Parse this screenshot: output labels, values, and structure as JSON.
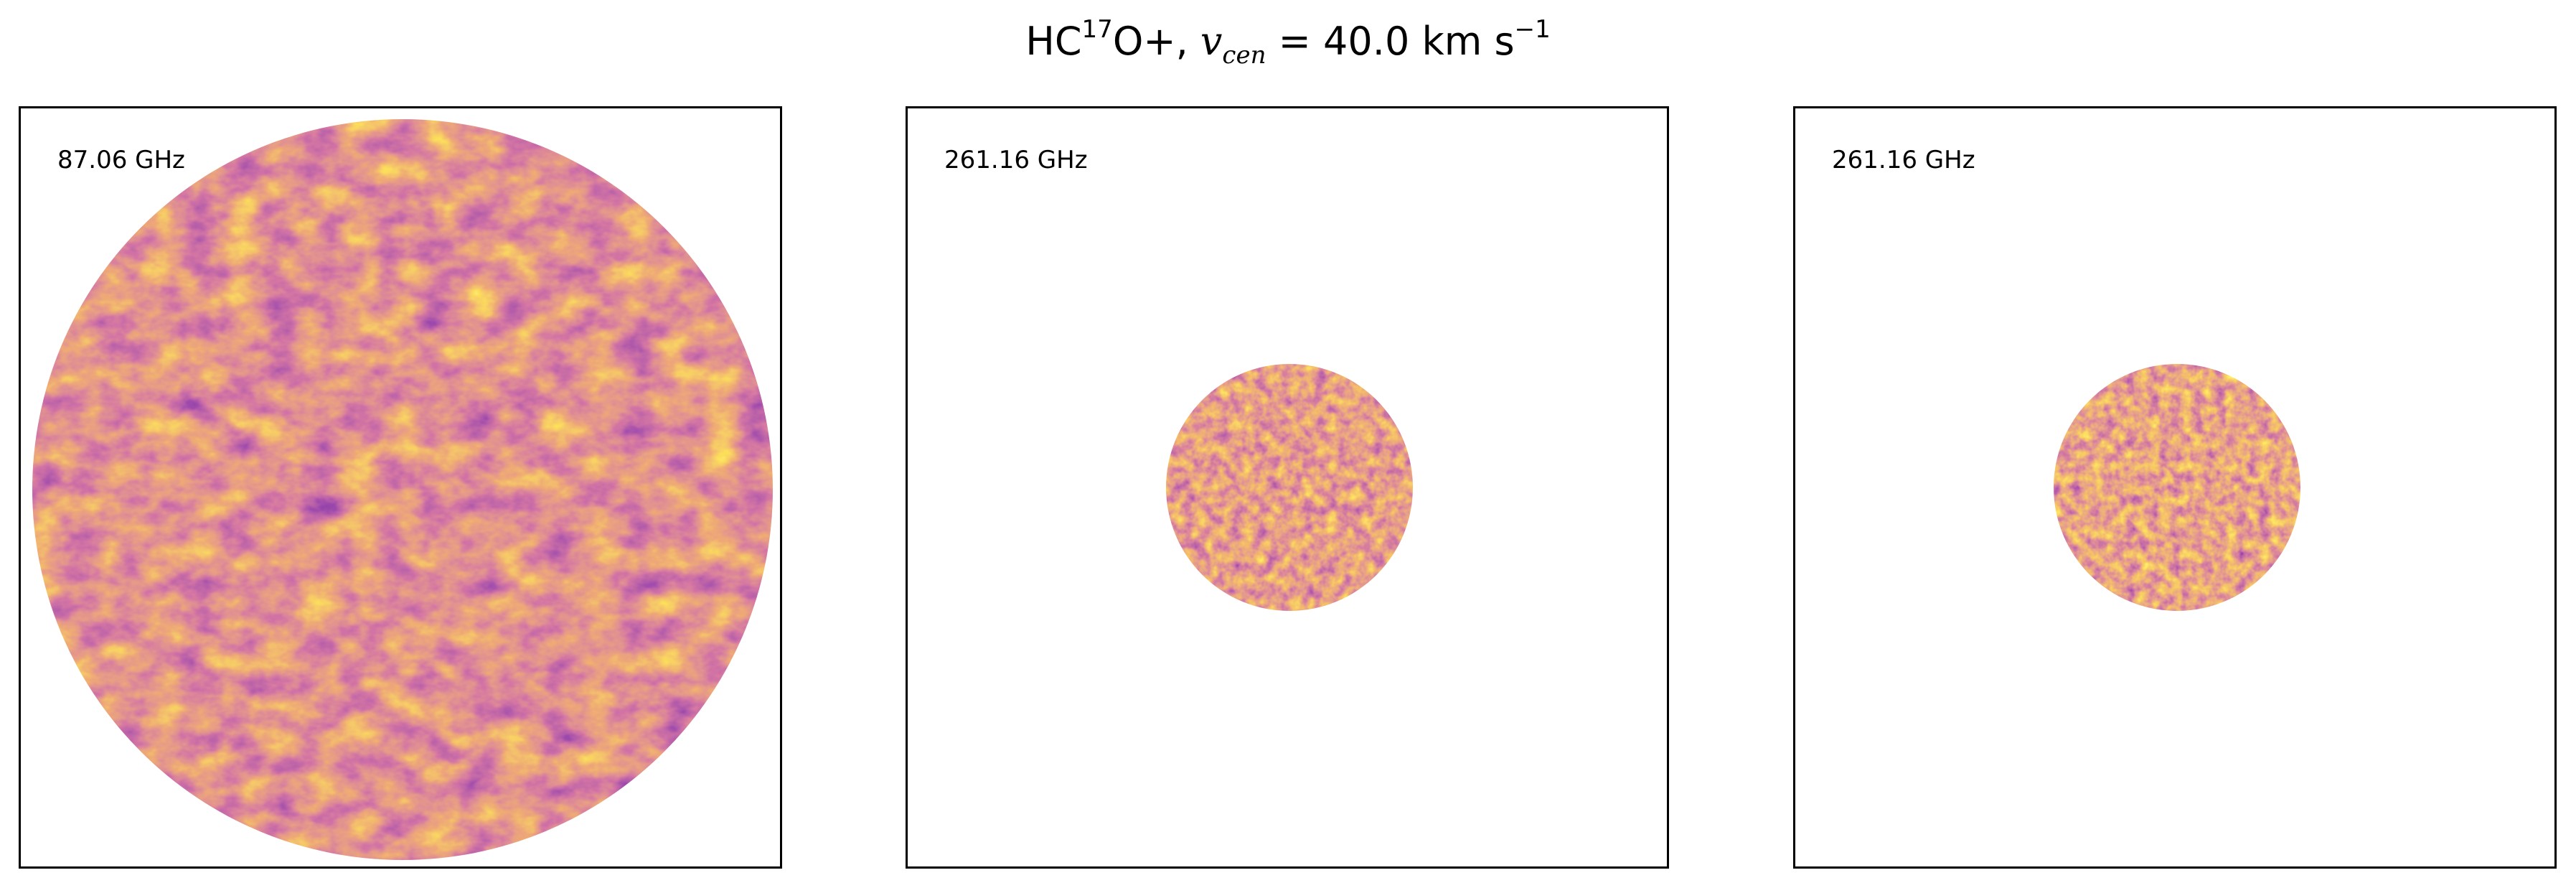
{
  "title": {
    "species_main": "HC",
    "species_iso": "17",
    "species_rest": "O+, ",
    "v_symbol": "v",
    "v_subscript": "cen",
    "v_value": " = 40.0 km s",
    "v_exponent": "−1"
  },
  "panels": [
    {
      "frequency": "87.06 GHz",
      "colormap": "inferno",
      "beam": "large"
    },
    {
      "frequency": "261.16 GHz",
      "colormap": "inferno",
      "beam": "small"
    },
    {
      "frequency": "261.16 GHz",
      "colormap": "inferno",
      "beam": "small"
    }
  ],
  "colors": {
    "low": "#2a0b53",
    "mid": "#a92e5e",
    "high": "#f7c93a",
    "peak": "#fcfbbd"
  }
}
